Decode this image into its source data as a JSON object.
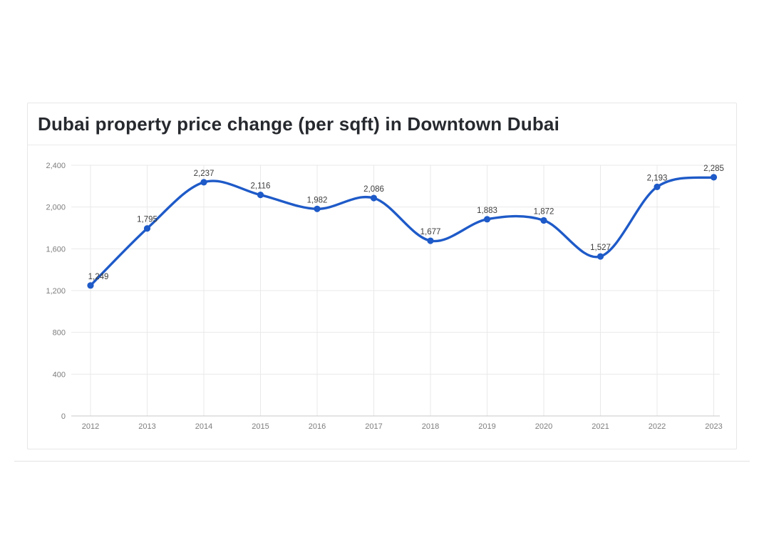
{
  "card": {
    "title": "Dubai property price change (per sqft) in Downtown Dubai"
  },
  "chart_data": {
    "type": "line",
    "title": "Dubai property price change (per sqft) in Downtown Dubai",
    "xlabel": "",
    "ylabel": "",
    "x": [
      2012,
      2013,
      2014,
      2015,
      2016,
      2017,
      2018,
      2019,
      2020,
      2021,
      2022,
      2023
    ],
    "x_tick_labels": [
      "2012",
      "2013",
      "2014",
      "2015",
      "2016",
      "2017",
      "2018",
      "2019",
      "2020",
      "2021",
      "2022",
      "2023"
    ],
    "values": [
      1249,
      1795,
      2237,
      2116,
      1982,
      2086,
      1677,
      1883,
      1872,
      1527,
      2193,
      2285
    ],
    "point_labels": [
      "1,249",
      "1,795",
      "2,237",
      "2,116",
      "1,982",
      "2,086",
      "1,677",
      "1,883",
      "1,872",
      "1,527",
      "2,193",
      "2,285"
    ],
    "y_ticks": [
      0,
      400,
      800,
      1200,
      1600,
      2000,
      2400
    ],
    "y_tick_labels": [
      "0",
      "400",
      "800",
      "1,200",
      "1,600",
      "2,000",
      "2,400"
    ],
    "ylim": [
      0,
      2400
    ],
    "grid": true,
    "legend_position": "none",
    "colors": {
      "line": "#1e5ac8",
      "point": "#1e5ac8",
      "grid": "#e9e9e9",
      "axis": "#c8c8c8",
      "tick_text": "#7d7d7d",
      "label_text": "#3d3d3d",
      "title_text": "#26292e"
    }
  }
}
